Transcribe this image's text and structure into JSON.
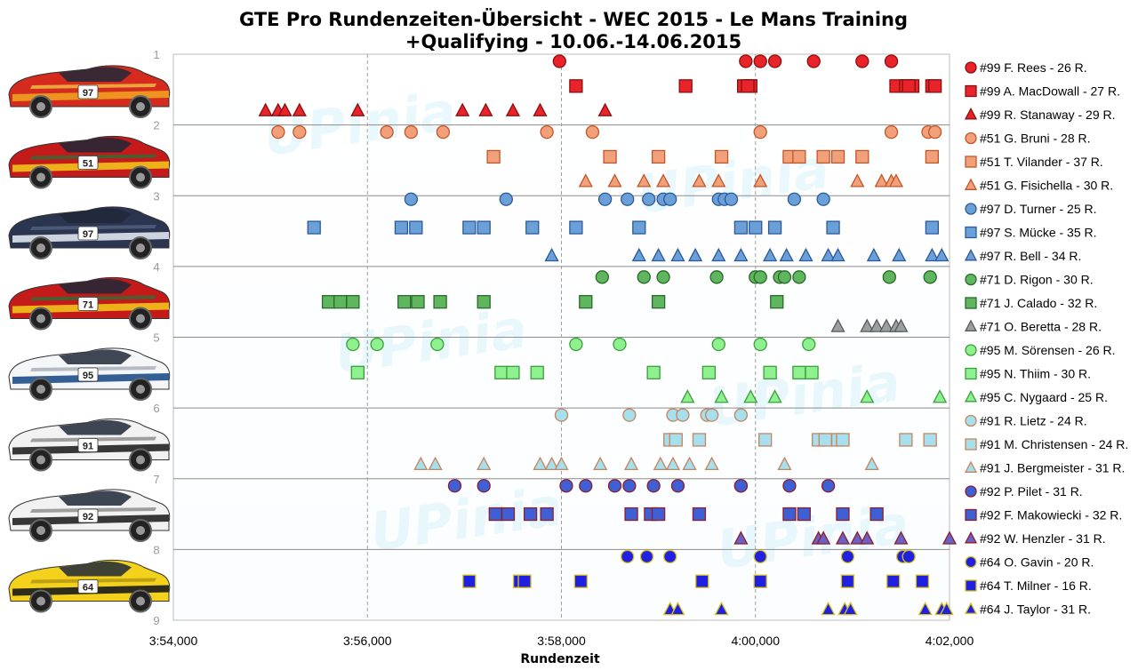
{
  "chart_data": {
    "type": "scatter",
    "title": [
      "GTE Pro Rundenzeiten-Übersicht - WEC 2015 - Le Mans Training",
      "+Qualifying - 10.06.-14.06.2015"
    ],
    "xlabel": "Rundenzeit",
    "x_tick_labels": [
      "3:54,000",
      "3:56,000",
      "3:58,000",
      "4:00,000",
      "4:02,000"
    ],
    "xlim_seconds": [
      234,
      242
    ],
    "y_tick_labels": [
      "1",
      "2",
      "3",
      "4",
      "5",
      "6",
      "7",
      "8",
      "9"
    ],
    "ylim": [
      1,
      9
    ],
    "grid": true,
    "legend_position": "right",
    "watermark": "UPinia",
    "cars": [
      {
        "number": "97",
        "livery": "Aston Martin Vantage – red/orange",
        "colors": [
          "#d42b1e",
          "#f0a020",
          "#f6d84a"
        ]
      },
      {
        "number": "51",
        "livery": "Ferrari 458 – red/yellow/green",
        "colors": [
          "#c41a1a",
          "#f2c21b",
          "#1a7a3a"
        ]
      },
      {
        "number": "97",
        "livery": "Aston Martin Vantage – dazzle camo",
        "colors": [
          "#2b3550",
          "#dfe4ee",
          "#5a6a8a"
        ]
      },
      {
        "number": "71",
        "livery": "Ferrari 458 – red/yellow/green",
        "colors": [
          "#c41a1a",
          "#f2c21b",
          "#1a7a3a"
        ]
      },
      {
        "number": "95",
        "livery": "Aston Martin Vantage – white/blue",
        "colors": [
          "#f4f6f8",
          "#1f4f8a",
          "#9aa3ad"
        ]
      },
      {
        "number": "91",
        "livery": "Porsche 911 RSR – white/black",
        "colors": [
          "#f2f2f2",
          "#222222",
          "#7a7a7a"
        ]
      },
      {
        "number": "92",
        "livery": "Porsche 911 RSR – white/black",
        "colors": [
          "#f2f2f2",
          "#222222",
          "#7a7a7a"
        ]
      },
      {
        "number": "64",
        "livery": "Corvette C7.R – yellow/black",
        "colors": [
          "#f4d21c",
          "#1a1a1a",
          "#a58a10"
        ]
      }
    ],
    "series": [
      {
        "name": "#99 F. Rees - 26 R.",
        "marker": "circle",
        "fill": "#e8232a",
        "stroke": "#8b0f0f",
        "y": 1.1,
        "x": [
          237.98,
          239.9,
          240.2,
          240.05,
          240.6,
          241.1,
          241.4
        ]
      },
      {
        "name": "#99 A. MacDowall - 27 R.",
        "marker": "square",
        "fill": "#e8232a",
        "stroke": "#8b0f0f",
        "y": 1.45,
        "x": [
          238.15,
          239.28,
          239.95,
          239.88,
          239.92,
          241.45,
          241.55,
          241.62,
          241.58,
          241.82,
          241.85
        ]
      },
      {
        "name": "#99 R. Stanaway - 29 R.",
        "marker": "triangle",
        "fill": "#e8232a",
        "stroke": "#8b0f0f",
        "y": 1.8,
        "x": [
          234.95,
          235.08,
          235.15,
          235.3,
          235.9,
          236.98,
          237.22,
          237.5,
          237.78,
          238.45
        ]
      },
      {
        "name": "#51 G. Bruni - 28 R.",
        "marker": "circle",
        "fill": "#f2a07a",
        "stroke": "#c2562a",
        "y": 2.1,
        "x": [
          235.08,
          235.3,
          236.2,
          236.45,
          236.78,
          237.85,
          238.32,
          240.05,
          241.4,
          241.78,
          241.85
        ]
      },
      {
        "name": "#51 T. Vilander - 37 R.",
        "marker": "square",
        "fill": "#f2a07a",
        "stroke": "#c2562a",
        "y": 2.45,
        "x": [
          237.3,
          238.5,
          239.0,
          239.65,
          240.35,
          240.45,
          240.7,
          240.85,
          241.1,
          241.82
        ]
      },
      {
        "name": "#51 G. Fisichella - 30 R.",
        "marker": "triangle",
        "fill": "#f2a07a",
        "stroke": "#c2562a",
        "y": 2.8,
        "x": [
          238.25,
          238.55,
          238.85,
          239.05,
          239.42,
          239.62,
          240.05,
          241.05,
          241.3,
          241.4,
          241.45
        ]
      },
      {
        "name": "#97 D. Turner - 25 R.",
        "marker": "circle",
        "fill": "#6a9fd8",
        "stroke": "#2b5a9a",
        "y": 3.05,
        "x": [
          236.45,
          237.43,
          238.45,
          238.68,
          238.9,
          239.05,
          239.12,
          239.62,
          239.68,
          239.75,
          240.4,
          240.7
        ]
      },
      {
        "name": "#97 S. Mücke - 35 R.",
        "marker": "square",
        "fill": "#6a9fd8",
        "stroke": "#2b5a9a",
        "y": 3.45,
        "x": [
          235.45,
          236.35,
          236.5,
          237.05,
          237.2,
          237.7,
          238.15,
          238.8,
          239.85,
          240.0,
          240.2,
          240.8,
          241.82
        ]
      },
      {
        "name": "#97 R. Bell - 34 R.",
        "marker": "triangle",
        "fill": "#6a9fd8",
        "stroke": "#2b5a9a",
        "y": 3.85,
        "x": [
          237.9,
          238.8,
          239.0,
          239.2,
          239.38,
          239.62,
          239.85,
          240.15,
          240.32,
          240.52,
          240.75,
          240.85,
          241.22,
          241.48,
          241.82,
          241.92
        ]
      },
      {
        "name": "#71 D. Rigon - 30 R.",
        "marker": "circle",
        "fill": "#5fb65f",
        "stroke": "#2a6a2a",
        "y": 4.15,
        "x": [
          238.42,
          238.85,
          239.05,
          239.6,
          240.0,
          240.05,
          240.25,
          240.3,
          240.45,
          241.38,
          241.8
        ]
      },
      {
        "name": "#71 J. Calado - 32 R.",
        "marker": "square",
        "fill": "#5fb65f",
        "stroke": "#2a6a2a",
        "y": 4.5,
        "x": [
          235.6,
          235.72,
          235.85,
          236.38,
          236.52,
          236.75,
          237.2,
          238.25,
          239.0,
          240.22
        ]
      },
      {
        "name": "#71 O. Beretta - 28 R.",
        "marker": "triangle",
        "fill": "#9aa0a0",
        "stroke": "#5a5a5a",
        "y": 4.85,
        "x": [
          240.85,
          241.15,
          241.25,
          241.35,
          241.45,
          241.5
        ]
      },
      {
        "name": "#95 M. Sörensen - 26 R.",
        "marker": "circle",
        "fill": "#8ef08e",
        "stroke": "#3aa03a",
        "y": 5.1,
        "x": [
          235.85,
          236.1,
          236.72,
          238.15,
          238.6,
          239.62,
          240.05,
          240.55
        ]
      },
      {
        "name": "#95 N. Thiim - 30 R.",
        "marker": "square",
        "fill": "#8ef08e",
        "stroke": "#3aa03a",
        "y": 5.5,
        "x": [
          235.9,
          237.38,
          237.5,
          237.75,
          238.95,
          239.52,
          240.15,
          240.45,
          240.58
        ]
      },
      {
        "name": "#95 C. Nygaard - 25 R.",
        "marker": "triangle",
        "fill": "#8ef08e",
        "stroke": "#3aa03a",
        "y": 5.85,
        "x": [
          239.3,
          239.65,
          239.95,
          240.2,
          241.15,
          241.9
        ]
      },
      {
        "name": "#91 R. Lietz - 24 R.",
        "marker": "circle",
        "fill": "#a6dfee",
        "stroke": "#c8845a",
        "y": 6.1,
        "x": [
          238.0,
          238.7,
          239.15,
          239.25,
          239.5,
          239.55,
          239.85
        ]
      },
      {
        "name": "#91 M. Christensen - 24 R.",
        "marker": "square",
        "fill": "#a6dfee",
        "stroke": "#c8845a",
        "y": 6.45,
        "x": [
          239.12,
          239.18,
          239.42,
          240.1,
          240.65,
          240.72,
          240.85,
          240.9,
          241.55,
          241.8
        ]
      },
      {
        "name": "#91 J. Bergmeister - 31 R.",
        "marker": "triangle",
        "fill": "#a6dfee",
        "stroke": "#c8845a",
        "y": 6.8,
        "x": [
          236.55,
          236.7,
          237.2,
          237.78,
          237.9,
          238.0,
          238.4,
          238.72,
          239.02,
          239.15,
          239.32,
          239.55,
          240.3,
          241.2
        ]
      },
      {
        "name": "#92 P. Pilet - 31 R.",
        "marker": "circle",
        "fill": "#3f5fd6",
        "stroke": "#8b1f2a",
        "y": 7.1,
        "x": [
          236.9,
          237.2,
          238.05,
          238.25,
          238.55,
          238.7,
          238.95,
          239.2,
          239.85,
          239.85,
          240.35,
          240.75
        ]
      },
      {
        "name": "#92 F. Makowiecki - 32 R.",
        "marker": "square",
        "fill": "#3f5fd6",
        "stroke": "#8b1f2a",
        "y": 7.5,
        "x": [
          237.32,
          237.45,
          237.68,
          237.85,
          238.72,
          238.92,
          239.0,
          239.42,
          240.35,
          240.5,
          240.9,
          241.25
        ]
      },
      {
        "name": "#92 W. Henzler - 31 R.",
        "marker": "triangle",
        "fill": "#6a60c8",
        "stroke": "#8b1f2a",
        "y": 7.85,
        "x": [
          239.85,
          240.65,
          240.7,
          240.9,
          241.05,
          241.15,
          241.5,
          242.0
        ]
      },
      {
        "name": "#64 O. Gavin - 20 R.",
        "marker": "circle",
        "fill": "#2020e0",
        "stroke": "#d8c21a",
        "y": 8.1,
        "x": [
          238.68,
          238.88,
          239.12,
          240.05,
          240.95,
          241.52,
          241.58
        ]
      },
      {
        "name": "#64 T. Milner - 16 R.",
        "marker": "square",
        "fill": "#2020e0",
        "stroke": "#d8c21a",
        "y": 8.45,
        "x": [
          237.05,
          237.57,
          237.62,
          238.2,
          239.45,
          240.05,
          240.95,
          241.42,
          241.72
        ]
      },
      {
        "name": "#64 J. Taylor - 31 R.",
        "marker": "triangle",
        "fill": "#2020e0",
        "stroke": "#d8c21a",
        "y": 8.85,
        "x": [
          239.12,
          239.2,
          239.65,
          240.75,
          240.92,
          240.98,
          241.75,
          241.92,
          241.97
        ]
      }
    ]
  }
}
